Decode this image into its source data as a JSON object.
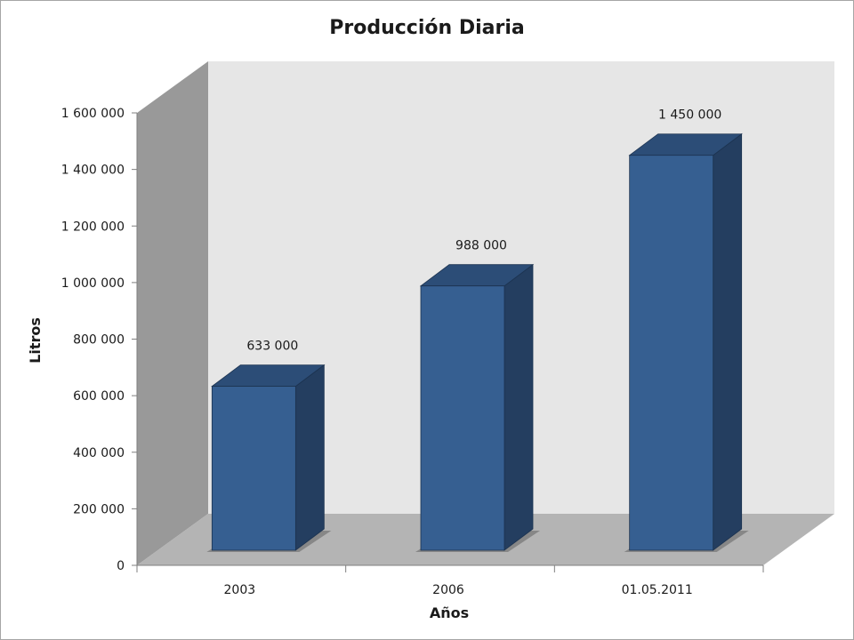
{
  "chart_data": {
    "type": "bar",
    "title": "Producción Diaria",
    "xlabel": "Años",
    "ylabel": "Litros",
    "categories": [
      "2003",
      "2006",
      "01.05.2011"
    ],
    "values": [
      633000,
      988000,
      1450000
    ],
    "data_labels": [
      "633 000",
      "988 000",
      "1 450 000"
    ],
    "ylim": [
      0,
      1600000
    ],
    "yticks": [
      0,
      200000,
      400000,
      600000,
      800000,
      1000000,
      1200000,
      1400000,
      1600000
    ],
    "ytick_labels": [
      "0",
      "200 000",
      "400 000",
      "600 000",
      "800 000",
      "1 000 000",
      "1 200 000",
      "1 400 000",
      "1 600 000"
    ],
    "grid": false,
    "legend": "none",
    "three_d": true,
    "colors": {
      "bar_front": "#365f91",
      "bar_top": "#2c4d77",
      "bar_side": "#243e60",
      "back_wall": "#e6e6e6",
      "side_wall": "#999999",
      "floor": "#b4b4b4"
    }
  }
}
